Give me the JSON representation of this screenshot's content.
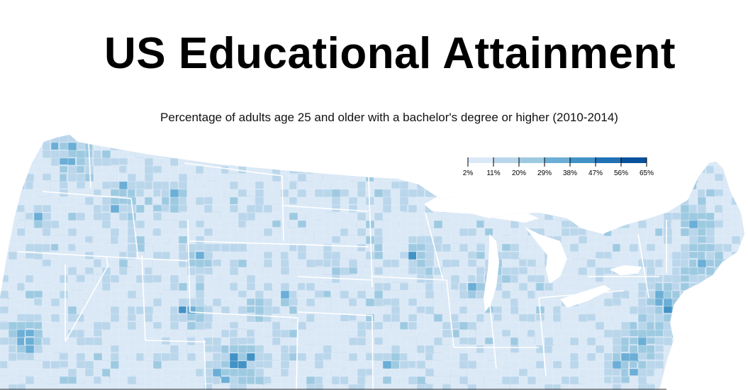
{
  "title": "US Educational Attainment",
  "subtitle": "Percentage of adults age 25 and older with a bachelor's degree or higher (2010-2014)",
  "legend": {
    "ticks": [
      "2%",
      "11%",
      "20%",
      "29%",
      "38%",
      "47%",
      "56%",
      "65%"
    ],
    "colors": [
      "#dbe9f6",
      "#bad6eb",
      "#9ecae1",
      "#6baed6",
      "#4292c6",
      "#2171b5",
      "#08519c"
    ]
  },
  "palette": {
    "land_base": "#cfe0f1",
    "water": "#ffffff",
    "border": "#ffffff"
  }
}
